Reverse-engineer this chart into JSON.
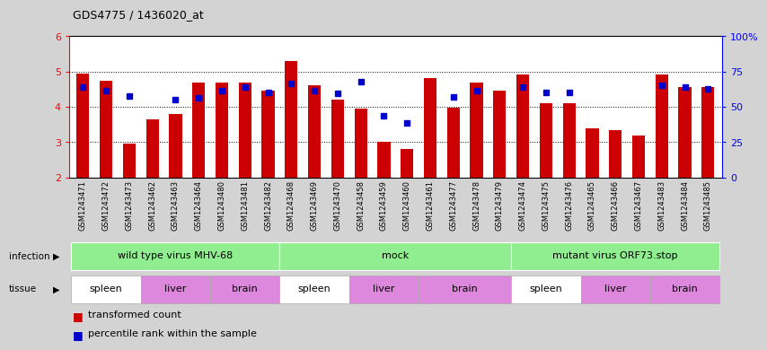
{
  "title": "GDS4775 / 1436020_at",
  "samples": [
    "GSM1243471",
    "GSM1243472",
    "GSM1243473",
    "GSM1243462",
    "GSM1243463",
    "GSM1243464",
    "GSM1243480",
    "GSM1243481",
    "GSM1243482",
    "GSM1243468",
    "GSM1243469",
    "GSM1243470",
    "GSM1243458",
    "GSM1243459",
    "GSM1243460",
    "GSM1243461",
    "GSM1243477",
    "GSM1243478",
    "GSM1243479",
    "GSM1243474",
    "GSM1243475",
    "GSM1243476",
    "GSM1243465",
    "GSM1243466",
    "GSM1243467",
    "GSM1243483",
    "GSM1243484",
    "GSM1243485"
  ],
  "bar_values": [
    4.95,
    4.75,
    2.95,
    3.65,
    3.8,
    4.68,
    4.68,
    4.68,
    4.45,
    5.3,
    4.6,
    4.2,
    3.95,
    3.0,
    2.8,
    4.82,
    3.98,
    4.68,
    4.45,
    4.92,
    4.1,
    4.1,
    3.38,
    3.35,
    3.18,
    4.92,
    4.55,
    4.55
  ],
  "dot_values": [
    4.55,
    4.45,
    4.3,
    null,
    4.2,
    4.25,
    4.45,
    4.55,
    4.42,
    4.65,
    4.45,
    4.38,
    4.72,
    3.75,
    3.55,
    null,
    4.28,
    4.45,
    null,
    4.55,
    4.42,
    4.42,
    null,
    null,
    null,
    4.6,
    4.55,
    4.5
  ],
  "ylim_left": [
    2,
    6
  ],
  "ylim_right": [
    0,
    100
  ],
  "yticks_left": [
    2,
    3,
    4,
    5,
    6
  ],
  "yticks_right": [
    0,
    25,
    50,
    75,
    100
  ],
  "ytick_right_labels": [
    "0",
    "25",
    "50",
    "75",
    "100%"
  ],
  "bar_color": "#cc0000",
  "dot_color": "#0000cc",
  "bar_bottom": 2.0,
  "background_color": "#d3d3d3",
  "plot_bg_color": "#ffffff",
  "infection_groups": [
    {
      "label": "wild type virus MHV-68",
      "start": 0,
      "end": 9,
      "color": "#90ee90"
    },
    {
      "label": "mock",
      "start": 9,
      "end": 19,
      "color": "#90ee90"
    },
    {
      "label": "mutant virus ORF73.stop",
      "start": 19,
      "end": 28,
      "color": "#90ee90"
    }
  ],
  "tissue_groups": [
    {
      "label": "spleen",
      "start": 0,
      "end": 3,
      "color": "#ffffff"
    },
    {
      "label": "liver",
      "start": 3,
      "end": 6,
      "color": "#dd88dd"
    },
    {
      "label": "brain",
      "start": 6,
      "end": 9,
      "color": "#dd88dd"
    },
    {
      "label": "spleen",
      "start": 9,
      "end": 12,
      "color": "#ffffff"
    },
    {
      "label": "liver",
      "start": 12,
      "end": 15,
      "color": "#dd88dd"
    },
    {
      "label": "brain",
      "start": 15,
      "end": 19,
      "color": "#dd88dd"
    },
    {
      "label": "spleen",
      "start": 19,
      "end": 22,
      "color": "#ffffff"
    },
    {
      "label": "liver",
      "start": 22,
      "end": 25,
      "color": "#dd88dd"
    },
    {
      "label": "brain",
      "start": 25,
      "end": 28,
      "color": "#dd88dd"
    }
  ]
}
